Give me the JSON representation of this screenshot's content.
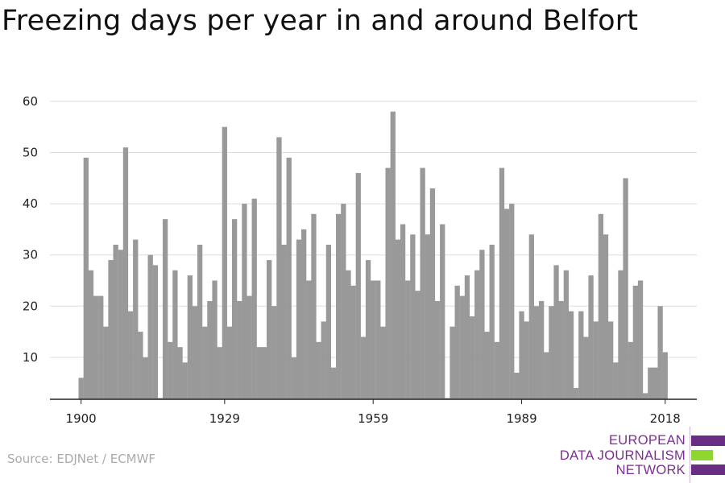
{
  "title": "Freezing days per year in and around Belfort",
  "source": "Source: EDJNet / ECMWF",
  "logo": {
    "line1": "EUROPEAN",
    "line2": "DATA JOURNALISM",
    "line3": "NETWORK",
    "colors": {
      "purple": "#6a2d86",
      "green": "#8fd630",
      "text": "#7b2f92"
    }
  },
  "colors": {
    "bar": "#999999",
    "grid": "#dddddd",
    "axis": "#222222",
    "text": "#222222"
  },
  "chart_data": {
    "type": "bar",
    "title": "Freezing days per year in and around Belfort",
    "xlabel": "",
    "ylabel": "",
    "ylim": [
      0,
      60
    ],
    "yticks": [
      10,
      20,
      30,
      40,
      50,
      60
    ],
    "xticks": [
      1900,
      1929,
      1959,
      1989,
      2018
    ],
    "grid": true,
    "legend": "none",
    "categories": [
      1900,
      1901,
      1902,
      1903,
      1904,
      1905,
      1906,
      1907,
      1908,
      1909,
      1910,
      1911,
      1912,
      1913,
      1914,
      1915,
      1916,
      1917,
      1918,
      1919,
      1920,
      1921,
      1922,
      1923,
      1924,
      1925,
      1926,
      1927,
      1928,
      1929,
      1930,
      1931,
      1932,
      1933,
      1934,
      1935,
      1936,
      1937,
      1938,
      1939,
      1940,
      1941,
      1942,
      1943,
      1944,
      1945,
      1946,
      1947,
      1948,
      1949,
      1950,
      1951,
      1952,
      1953,
      1954,
      1955,
      1956,
      1957,
      1958,
      1959,
      1960,
      1961,
      1962,
      1963,
      1964,
      1965,
      1966,
      1967,
      1968,
      1969,
      1970,
      1971,
      1972,
      1973,
      1974,
      1975,
      1976,
      1977,
      1978,
      1979,
      1980,
      1981,
      1982,
      1983,
      1984,
      1985,
      1986,
      1987,
      1988,
      1989,
      1990,
      1991,
      1992,
      1993,
      1994,
      1995,
      1996,
      1997,
      1998,
      1999,
      2000,
      2001,
      2002,
      2003,
      2004,
      2005,
      2006,
      2007,
      2008,
      2009,
      2010,
      2011,
      2012,
      2013,
      2014,
      2015,
      2016,
      2017,
      2018
    ],
    "values": [
      6,
      49,
      27,
      22,
      22,
      16,
      29,
      32,
      31,
      51,
      19,
      33,
      15,
      10,
      30,
      28,
      0,
      37,
      13,
      27,
      12,
      9,
      26,
      20,
      32,
      16,
      21,
      25,
      12,
      55,
      16,
      37,
      21,
      40,
      22,
      41,
      12,
      12,
      29,
      20,
      53,
      32,
      49,
      10,
      33,
      35,
      25,
      38,
      13,
      17,
      32,
      8,
      38,
      40,
      27,
      24,
      46,
      14,
      29,
      25,
      25,
      16,
      47,
      58,
      33,
      36,
      25,
      34,
      23,
      47,
      34,
      43,
      21,
      36,
      0,
      16,
      24,
      22,
      26,
      18,
      27,
      31,
      15,
      32,
      13,
      47,
      39,
      40,
      7,
      19,
      17,
      34,
      20,
      21,
      11,
      20,
      28,
      21,
      27,
      19,
      4,
      19,
      14,
      26,
      17,
      38,
      34,
      17,
      9,
      27,
      45,
      13,
      24,
      25,
      3,
      8,
      8,
      20,
      11
    ]
  }
}
